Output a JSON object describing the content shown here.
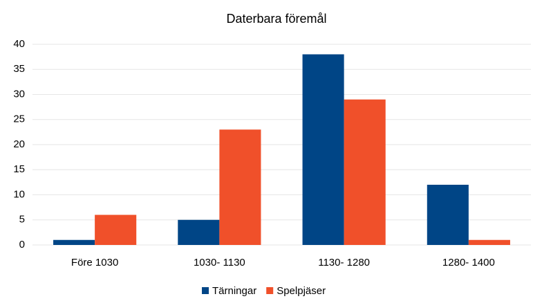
{
  "chart_data": {
    "type": "bar",
    "title": "Daterbara föremål",
    "categories": [
      "Före 1030",
      "1030- 1130",
      "1130- 1280",
      "1280- 1400"
    ],
    "series": [
      {
        "name": "Tärningar",
        "color": "#004586",
        "values": [
          1,
          5,
          38,
          12
        ]
      },
      {
        "name": "Spelpjäser",
        "color": "#f0502a",
        "values": [
          6,
          23,
          29,
          1
        ]
      }
    ],
    "ylim": [
      0,
      40
    ],
    "yticks": [
      0,
      5,
      10,
      15,
      20,
      25,
      30,
      35,
      40
    ],
    "grid": true,
    "legend": "bottom"
  }
}
